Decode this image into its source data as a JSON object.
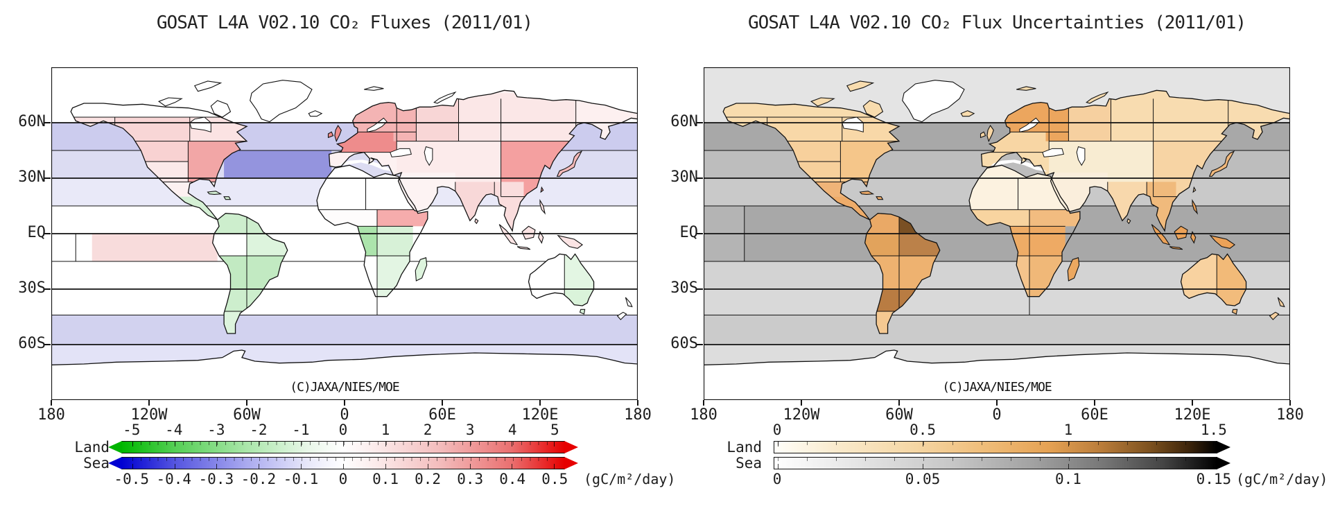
{
  "panels": [
    {
      "title": "GOSAT L4A V02.10 CO₂ Fluxes (2011/01)",
      "credit": "(C)JAXA/NIES/MOE",
      "lat_labels": [
        "60N",
        "30N",
        "EQ",
        "30S",
        "60S"
      ],
      "lon_labels": [
        "180",
        "120W",
        "60W",
        "0",
        "60E",
        "120E",
        "180"
      ],
      "colorbar": {
        "land_label": "Land",
        "sea_label": "Sea",
        "units": "(gC/m²/day)",
        "land_ticks": [
          "-5",
          "-4",
          "-3",
          "-2",
          "-1",
          "0",
          "1",
          "2",
          "3",
          "4",
          "5"
        ],
        "sea_ticks": [
          "-0.5",
          "-0.4",
          "-0.3",
          "-0.2",
          "-0.1",
          "0",
          "0.1",
          "0.2",
          "0.3",
          "0.4",
          "0.5"
        ],
        "tick_inset_pct": 2.3,
        "land_arrow_colors": [
          "#00b400",
          "#e60000"
        ],
        "sea_arrow_colors": [
          "#0000d2",
          "#e60000"
        ],
        "land_gradient": [
          "#00b800",
          "#ffffff",
          "#e60000"
        ],
        "sea_gradient": [
          "#0000d2",
          "#ffffff",
          "#e60000"
        ]
      },
      "map_colors": {
        "band_arctic": "#ffffff",
        "band_subarctic": "#ccccee",
        "band_nmid": "#dcdcf2",
        "band_ntrop": "#e9e9f8",
        "band_eq_n": "#ffffff",
        "band_eq_s": "#ffffff",
        "band_strop": "#ffffff",
        "band_smid": "#ffffff",
        "band_subant": "#d2d2ef",
        "band_antarctic": "#e3e3f7",
        "atl_nmid": "#9494de",
        "pac_patch": "#f8dcdc",
        "eq_west_patch": "#ffffff",
        "arctic_land": "#ffffff",
        "na_alaska": "#fbe3e3",
        "na_boreal_w": "#f8d6d6",
        "na_boreal_e": "#fbe3e3",
        "na_temp_w": "#f8d2d2",
        "na_temp_e": "#f2a6a6",
        "na_sw": "#fbe9e9",
        "na_mex": "#fdf1f1",
        "c_america": "#d5f0d5",
        "sa_nw": "#cdeecd",
        "sa_ne": "#cdeecd",
        "sa_amazon_w": "#ffffff",
        "sa_amazon_e": "#ddf4dd",
        "sa_central": "#c2eac2",
        "sa_pampas": "#cdeecd",
        "sa_patagonia": "#ddf4dd",
        "ea_base": "#fdf1f1",
        "europe": "#ee8c8c",
        "scand": "#f4b4b4",
        "wrussia": "#f8d6d6",
        "esib": "#fbe7e7",
        "fareast": "#fdf0f0",
        "cenasia": "#fcebeb",
        "mideast": "#fdf3f3",
        "china": "#f4a0a0",
        "india": "#f8d8d8",
        "seasia": "#fadddd",
        "indonesia": "#fbe4e4",
        "japan": "#f6baba",
        "uk": "#ee8c8c",
        "iceland": "#ffffff",
        "arctic_isl": "#ffffff",
        "greenland": "#ffffff",
        "af_sahara": "#ffffff",
        "af_sahel": "#fefcfc",
        "af_horn": "#f6acac",
        "af_eq_w": "#ace4ac",
        "af_eq_e": "#d7f1d7",
        "af_s_w": "#ffffff",
        "af_s_e": "#e3f5e3",
        "madagascar": "#ddf4dd",
        "australia_w": "#ffffff",
        "australia_ne": "#e3f6e3",
        "australia_sw": "#ffffff",
        "australia_se": "#daf3da",
        "nz": "#ffffff",
        "antarctica": "#ffffff",
        "hudson": "#ffffff",
        "baltic": "#ffffff",
        "lakes": "#ffffff",
        "med": "#ffffff"
      }
    },
    {
      "title": "GOSAT L4A V02.10 CO₂ Flux Uncertainties (2011/01)",
      "credit": "(C)JAXA/NIES/MOE",
      "lat_labels": [
        "60N",
        "30N",
        "EQ",
        "30S",
        "60S"
      ],
      "lon_labels": [
        "180",
        "120W",
        "60W",
        "0",
        "60E",
        "120E",
        "180"
      ],
      "colorbar": {
        "land_label": "Land",
        "sea_label": "Sea",
        "units": "(gC/m²/day)",
        "land_ticks": [
          "0",
          "0.5",
          "1",
          "1.5"
        ],
        "sea_ticks": [
          "0",
          "0.05",
          "0.1",
          "0.15"
        ],
        "tick_inset_pct": 0.8,
        "land_arrow_colors": [
          null,
          "#000000"
        ],
        "sea_arrow_colors": [
          null,
          "#000000"
        ],
        "land_gradient": [
          "#ffffff",
          "#efbc78",
          "#7c511f",
          "#000000"
        ],
        "sea_gradient": [
          "#ffffff",
          "#a3a3a3",
          "#000000"
        ]
      },
      "map_colors": {
        "band_arctic": "#e4e4e4",
        "band_subarctic": "#a8a8a8",
        "band_nmid": "#bdbdbd",
        "band_ntrop": "#c9c9c9",
        "band_eq_n": "#a8a8a8",
        "band_eq_s": "#a8a8a8",
        "band_strop": "#d3d3d3",
        "band_smid": "#d9d9d9",
        "band_subant": "#cbcbcb",
        "band_antarctic": "#dddddd",
        "atl_nmid": "#bdbdbd",
        "pac_patch": "#a8a8a8",
        "eq_west_patch": "#b4b4b4",
        "arctic_land": "#f8dcae",
        "na_alaska": "#f8dcae",
        "na_boreal_w": "#f8d8a8",
        "na_boreal_e": "#f8d8a8",
        "na_temp_w": "#f7d09c",
        "na_temp_e": "#f5c68a",
        "na_sw": "#f7d09c",
        "na_mex": "#f0b478",
        "c_america": "#eeac6a",
        "sa_nw": "#eaa966",
        "sa_ne": "#7a5024",
        "sa_amazon_w": "#e2a35c",
        "sa_amazon_e": "#bb8149",
        "sa_central": "#eeb270",
        "sa_pampas": "#b97c42",
        "sa_patagonia": "#f5c992",
        "ea_base": "#f8dcae",
        "europe": "#f8d6a4",
        "scand": "#eca65e",
        "wrussia": "#f6d0a0",
        "esib": "#f8dcb0",
        "fareast": "#f8dcb0",
        "cenasia": "#f8ecd2",
        "mideast": "#faeedc",
        "china": "#f7d4a4",
        "india": "#f8d8ac",
        "seasia": "#f0ba7c",
        "indonesia": "#eca258",
        "japan": "#f0b87c",
        "uk": "#f8d6a4",
        "iceland": "#f8dcae",
        "arctic_isl": "#f8dcae",
        "greenland": "#ffffff",
        "af_sahara": "#fcf2e0",
        "af_sahel": "#f8d4a0",
        "af_horn": "#f2bc80",
        "af_eq_w": "#eeac66",
        "af_eq_e": "#eeaa64",
        "af_s_w": "#f4c48c",
        "af_s_e": "#f0b878",
        "madagascar": "#eca860",
        "australia_w": "#f8d2a0",
        "australia_ne": "#f2ba78",
        "australia_sw": "#f8d2a0",
        "australia_se": "#f2bc7c",
        "nz": "#f6d0a0",
        "antarctica": "#ffffff",
        "hudson": "#ffffff",
        "baltic": "#ffffff",
        "lakes": "#ffffff",
        "med": "#ffffff"
      }
    }
  ],
  "chart_data": [
    {
      "type": "heatmap",
      "subtype": "choropleth_world_map",
      "title": "GOSAT L4A V02.10 CO₂ Fluxes (2011/01)",
      "units": "gC/m²/day",
      "projection": "equirectangular",
      "lat_range": [
        -90,
        90
      ],
      "lon_range": [
        -180,
        180
      ],
      "land_scale": {
        "min": -5,
        "max": 5,
        "palette": [
          "#00b800",
          "#ffffff",
          "#e60000"
        ]
      },
      "sea_scale": {
        "min": -0.5,
        "max": 0.5,
        "palette": [
          "#0000d2",
          "#ffffff",
          "#e60000"
        ]
      },
      "land_regions": [
        {
          "name": "alaska",
          "value": 0.3
        },
        {
          "name": "boreal-north-america-west",
          "value": 0.5
        },
        {
          "name": "boreal-north-america-east",
          "value": 0.3
        },
        {
          "name": "temperate-north-america-west",
          "value": 0.6
        },
        {
          "name": "temperate-north-america-east",
          "value": 1.3
        },
        {
          "name": "southwest-usa",
          "value": 0.2
        },
        {
          "name": "mexico",
          "value": 0.1
        },
        {
          "name": "central-america-caribbean",
          "value": -0.5
        },
        {
          "name": "tropical-south-america-northwest",
          "value": -0.7
        },
        {
          "name": "tropical-south-america-northeast",
          "value": -0.7
        },
        {
          "name": "amazon-west",
          "value": 0.0
        },
        {
          "name": "amazon-east",
          "value": -0.4
        },
        {
          "name": "central-south-america",
          "value": -1.1
        },
        {
          "name": "pampas-argentina",
          "value": -0.9
        },
        {
          "name": "patagonia",
          "value": -0.5
        },
        {
          "name": "europe",
          "value": 1.9
        },
        {
          "name": "scandinavia-nw-russia",
          "value": 1.1
        },
        {
          "name": "west-russia",
          "value": 0.5
        },
        {
          "name": "siberia",
          "value": 0.25
        },
        {
          "name": "far-east-asia",
          "value": 0.15
        },
        {
          "name": "central-asia",
          "value": 0.1
        },
        {
          "name": "middle-east",
          "value": 0.05
        },
        {
          "name": "east-asia-china",
          "value": 1.4
        },
        {
          "name": "india",
          "value": 0.5
        },
        {
          "name": "southeast-asia",
          "value": 0.45
        },
        {
          "name": "indonesia",
          "value": 0.35
        },
        {
          "name": "japan",
          "value": 1.0
        },
        {
          "name": "north-africa-sahara",
          "value": 0.0
        },
        {
          "name": "sahel-west-africa",
          "value": 0.05
        },
        {
          "name": "east-africa-horn",
          "value": 1.1
        },
        {
          "name": "equatorial-africa-west",
          "value": -1.5
        },
        {
          "name": "equatorial-africa-east",
          "value": -0.55
        },
        {
          "name": "southern-africa-west",
          "value": 0.0
        },
        {
          "name": "southern-africa-east",
          "value": -0.35
        },
        {
          "name": "madagascar",
          "value": -0.5
        },
        {
          "name": "australia-west",
          "value": 0.0
        },
        {
          "name": "australia-east",
          "value": -0.45
        },
        {
          "name": "new-zealand",
          "value": 0.0
        },
        {
          "name": "greenland",
          "value": 0.0
        },
        {
          "name": "antarctica",
          "value": 0.0
        }
      ],
      "sea_regions": [
        {
          "name": "arctic-ocean",
          "value": 0.0
        },
        {
          "name": "subarctic-45n-60n",
          "value": -0.12
        },
        {
          "name": "north-pacific-30n-45n",
          "value": -0.08
        },
        {
          "name": "north-atlantic-30n-45n",
          "value": -0.35
        },
        {
          "name": "northern-subtropics-15n-30n",
          "value": -0.06
        },
        {
          "name": "equatorial-15n-0",
          "value": 0.0
        },
        {
          "name": "tropical-east-pacific-0-15s",
          "value": 0.08
        },
        {
          "name": "southern-subtropics-15s-30s",
          "value": 0.0
        },
        {
          "name": "southern-midlat-30s-45s",
          "value": 0.0
        },
        {
          "name": "southern-ocean-45s-60s",
          "value": -0.1
        },
        {
          "name": "antarctic-ocean-below-60s",
          "value": -0.06
        }
      ]
    },
    {
      "type": "heatmap",
      "subtype": "choropleth_world_map",
      "title": "GOSAT L4A V02.10 CO₂ Flux Uncertainties (2011/01)",
      "units": "gC/m²/day",
      "projection": "equirectangular",
      "lat_range": [
        -90,
        90
      ],
      "lon_range": [
        -180,
        180
      ],
      "land_scale": {
        "min": 0,
        "max": 1.5,
        "palette": [
          "#ffffff",
          "#efbc78",
          "#7c511f",
          "#000000"
        ]
      },
      "sea_scale": {
        "min": 0,
        "max": 0.15,
        "palette": [
          "#ffffff",
          "#a3a3a3",
          "#000000"
        ]
      },
      "land_regions": [
        {
          "name": "alaska",
          "value": 0.45
        },
        {
          "name": "boreal-north-america-west",
          "value": 0.45
        },
        {
          "name": "boreal-north-america-east",
          "value": 0.45
        },
        {
          "name": "temperate-north-america-west",
          "value": 0.5
        },
        {
          "name": "temperate-north-america-east",
          "value": 0.6
        },
        {
          "name": "southwest-usa",
          "value": 0.5
        },
        {
          "name": "mexico",
          "value": 0.7
        },
        {
          "name": "central-america-caribbean",
          "value": 0.75
        },
        {
          "name": "tropical-south-america-northwest",
          "value": 0.7
        },
        {
          "name": "tropical-south-america-northeast",
          "value": 1.25
        },
        {
          "name": "amazon-west",
          "value": 0.8
        },
        {
          "name": "amazon-east",
          "value": 0.95
        },
        {
          "name": "central-south-america",
          "value": 0.7
        },
        {
          "name": "pampas-argentina",
          "value": 0.95
        },
        {
          "name": "patagonia",
          "value": 0.55
        },
        {
          "name": "europe",
          "value": 0.45
        },
        {
          "name": "scandinavia-nw-russia",
          "value": 0.75
        },
        {
          "name": "west-russia",
          "value": 0.55
        },
        {
          "name": "siberia",
          "value": 0.45
        },
        {
          "name": "far-east-asia",
          "value": 0.45
        },
        {
          "name": "central-asia",
          "value": 0.25
        },
        {
          "name": "middle-east",
          "value": 0.15
        },
        {
          "name": "east-asia-china",
          "value": 0.5
        },
        {
          "name": "india",
          "value": 0.45
        },
        {
          "name": "southeast-asia",
          "value": 0.65
        },
        {
          "name": "indonesia",
          "value": 0.8
        },
        {
          "name": "japan",
          "value": 0.65
        },
        {
          "name": "north-africa-sahara",
          "value": 0.1
        },
        {
          "name": "sahel-west-africa",
          "value": 0.55
        },
        {
          "name": "east-africa-horn",
          "value": 0.6
        },
        {
          "name": "equatorial-africa-west",
          "value": 0.75
        },
        {
          "name": "equatorial-africa-east",
          "value": 0.75
        },
        {
          "name": "southern-africa-west",
          "value": 0.6
        },
        {
          "name": "southern-africa-east",
          "value": 0.7
        },
        {
          "name": "madagascar",
          "value": 0.75
        },
        {
          "name": "australia-west",
          "value": 0.55
        },
        {
          "name": "australia-east",
          "value": 0.7
        },
        {
          "name": "new-zealand",
          "value": 0.5
        },
        {
          "name": "greenland",
          "value": 0.02
        },
        {
          "name": "antarctica",
          "value": 0.02
        }
      ],
      "sea_regions": [
        {
          "name": "arctic-ocean",
          "value": 0.02
        },
        {
          "name": "subarctic-45n-60n",
          "value": 0.09
        },
        {
          "name": "north-pacific-atlantic-30n-45n",
          "value": 0.07
        },
        {
          "name": "northern-subtropics-15n-30n",
          "value": 0.06
        },
        {
          "name": "equatorial-15n-15s",
          "value": 0.1
        },
        {
          "name": "southern-subtropics-15s-30s",
          "value": 0.05
        },
        {
          "name": "southern-midlat-30s-45s",
          "value": 0.04
        },
        {
          "name": "southern-ocean-45s-60s",
          "value": 0.06
        },
        {
          "name": "antarctic-ocean-below-60s",
          "value": 0.03
        }
      ]
    }
  ]
}
